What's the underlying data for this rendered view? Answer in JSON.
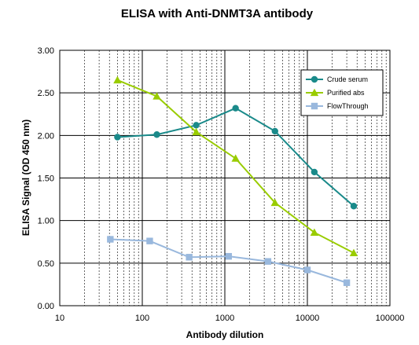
{
  "chart_data": {
    "type": "line",
    "title": "ELISA  with Anti-DNMT3A antibody",
    "xlabel": "Antibody dilution",
    "ylabel": "ELISA Signal (OD 450 nm)",
    "x_scale": "log",
    "xlim": [
      10,
      100000
    ],
    "ylim": [
      0,
      3
    ],
    "x_ticks": [
      "10",
      "100",
      "1000",
      "10000",
      "100000"
    ],
    "y_ticks": [
      "0.00",
      "0.50",
      "1.00",
      "1.50",
      "2.00",
      "2.50",
      "3.00"
    ],
    "grid": true,
    "legend_position": "top-right",
    "series": [
      {
        "name": "Crude serum",
        "color": "#1a8a8a",
        "marker": "circle",
        "x": [
          50,
          150,
          450,
          1350,
          4050,
          12150,
          36450
        ],
        "y": [
          1.98,
          2.01,
          2.12,
          2.32,
          2.05,
          1.57,
          1.17
        ]
      },
      {
        "name": "Purified abs",
        "color": "#99cc00",
        "marker": "triangle",
        "x": [
          50,
          150,
          450,
          1350,
          4050,
          12150,
          36450
        ],
        "y": [
          2.65,
          2.46,
          2.04,
          1.73,
          1.21,
          0.86,
          0.62
        ]
      },
      {
        "name": "FlowThrough",
        "color": "#99b8dd",
        "marker": "square",
        "x": [
          41,
          123,
          370,
          1111,
          3333,
          10000,
          30000
        ],
        "y": [
          0.78,
          0.76,
          0.57,
          0.58,
          0.52,
          0.42,
          0.27
        ]
      }
    ]
  }
}
